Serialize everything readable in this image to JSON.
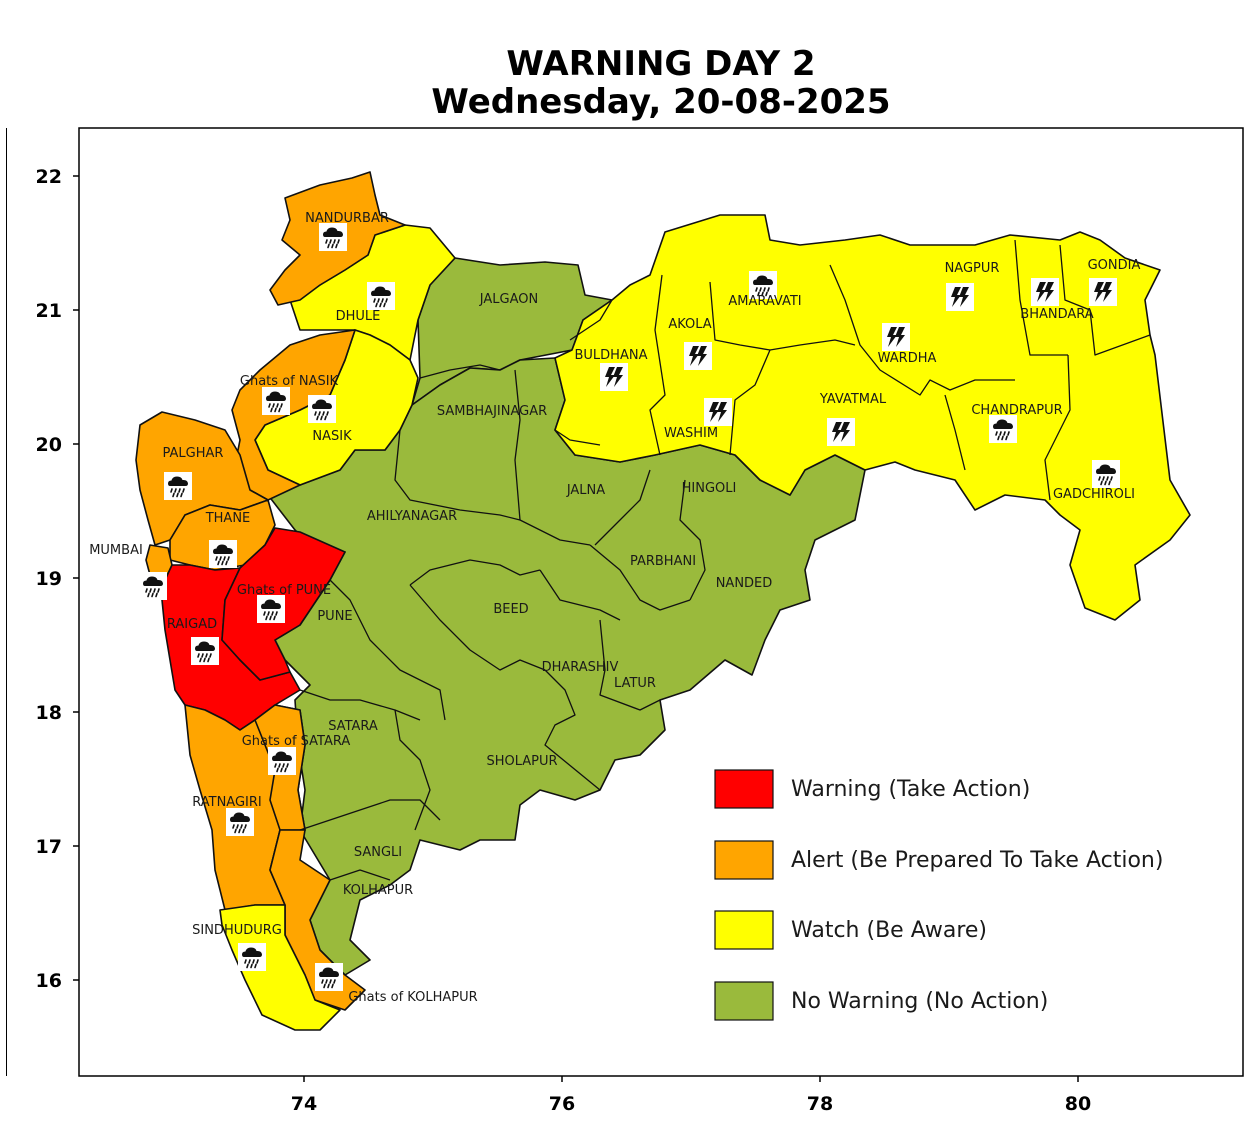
{
  "title": {
    "line1": "WARNING DAY 2",
    "line2": "Wednesday, 20-08-2025"
  },
  "colors": {
    "red": "#ff0000",
    "orange": "#ffa500",
    "yellow": "#ffff00",
    "green": "#9aba3c"
  },
  "axes": {
    "x_ticks": [
      "74",
      "76",
      "78",
      "80"
    ],
    "y_ticks": [
      "22",
      "21",
      "20",
      "19",
      "18",
      "17",
      "16"
    ],
    "xlim": [
      72.2,
      81.3
    ],
    "ylim": [
      15.3,
      22.4
    ]
  },
  "legend": [
    {
      "color": "#ff0000",
      "label": "Warning (Take Action)"
    },
    {
      "color": "#ffa500",
      "label": "Alert (Be Prepared To Take Action)"
    },
    {
      "color": "#ffff00",
      "label": "Watch (Be Aware)"
    },
    {
      "color": "#9aba3c",
      "label": "No Warning (No Action)"
    }
  ],
  "districts": [
    {
      "name": "NANDURBAR",
      "level": "alert",
      "icon": "heavy-rain-icon"
    },
    {
      "name": "DHULE",
      "level": "watch",
      "icon": "heavy-rain-icon"
    },
    {
      "name": "JALGAON",
      "level": "no-warning",
      "icon": ""
    },
    {
      "name": "Ghats of NASIK",
      "level": "alert",
      "icon": "heavy-rain-icon"
    },
    {
      "name": "NASIK",
      "level": "watch",
      "icon": "heavy-rain-icon"
    },
    {
      "name": "PALGHAR",
      "level": "alert",
      "icon": "heavy-rain-icon"
    },
    {
      "name": "THANE",
      "level": "alert",
      "icon": "heavy-rain-icon"
    },
    {
      "name": "MUMBAI",
      "level": "alert",
      "icon": "heavy-rain-icon"
    },
    {
      "name": "RAIGAD",
      "level": "warning",
      "icon": "heavy-rain-icon"
    },
    {
      "name": "Ghats of PUNE",
      "level": "warning",
      "icon": "heavy-rain-icon"
    },
    {
      "name": "PUNE",
      "level": "no-warning",
      "icon": ""
    },
    {
      "name": "AHILYANAGAR",
      "level": "no-warning",
      "icon": ""
    },
    {
      "name": "SAMBHAJINAGAR",
      "level": "no-warning",
      "icon": ""
    },
    {
      "name": "JALNA",
      "level": "no-warning",
      "icon": ""
    },
    {
      "name": "BEED",
      "level": "no-warning",
      "icon": ""
    },
    {
      "name": "DHARASHIV",
      "level": "no-warning",
      "icon": ""
    },
    {
      "name": "LATUR",
      "level": "no-warning",
      "icon": ""
    },
    {
      "name": "SATARA",
      "level": "no-warning",
      "icon": ""
    },
    {
      "name": "Ghats of SATARA",
      "level": "alert",
      "icon": "heavy-rain-icon"
    },
    {
      "name": "SHOLAPUR",
      "level": "no-warning",
      "icon": ""
    },
    {
      "name": "RATNAGIRI",
      "level": "alert",
      "icon": "heavy-rain-icon"
    },
    {
      "name": "SANGLI",
      "level": "no-warning",
      "icon": ""
    },
    {
      "name": "KOLHAPUR",
      "level": "no-warning",
      "icon": ""
    },
    {
      "name": "Ghats of KOLHAPUR",
      "level": "alert",
      "icon": "heavy-rain-icon"
    },
    {
      "name": "SINDHUDURG",
      "level": "watch",
      "icon": "heavy-rain-icon"
    },
    {
      "name": "BULDHANA",
      "level": "watch",
      "icon": "thunderstorm-icon"
    },
    {
      "name": "AKOLA",
      "level": "watch",
      "icon": "thunderstorm-icon"
    },
    {
      "name": "WASHIM",
      "level": "watch",
      "icon": "thunderstorm-icon"
    },
    {
      "name": "AMARAVATI",
      "level": "watch",
      "icon": "heavy-rain-icon"
    },
    {
      "name": "HINGOLI",
      "level": "no-warning",
      "icon": ""
    },
    {
      "name": "PARBHANI",
      "level": "no-warning",
      "icon": ""
    },
    {
      "name": "NANDED",
      "level": "no-warning",
      "icon": ""
    },
    {
      "name": "YAVATMAL",
      "level": "watch",
      "icon": "thunderstorm-icon"
    },
    {
      "name": "WARDHA",
      "level": "watch",
      "icon": "thunderstorm-icon"
    },
    {
      "name": "NAGPUR",
      "level": "watch",
      "icon": "thunderstorm-icon"
    },
    {
      "name": "BHANDARA",
      "level": "watch",
      "icon": "thunderstorm-icon"
    },
    {
      "name": "GONDIA",
      "level": "watch",
      "icon": "thunderstorm-icon"
    },
    {
      "name": "CHANDRAPUR",
      "level": "watch",
      "icon": "heavy-rain-icon"
    },
    {
      "name": "GADCHIROLI",
      "level": "watch",
      "icon": "heavy-rain-icon"
    }
  ]
}
